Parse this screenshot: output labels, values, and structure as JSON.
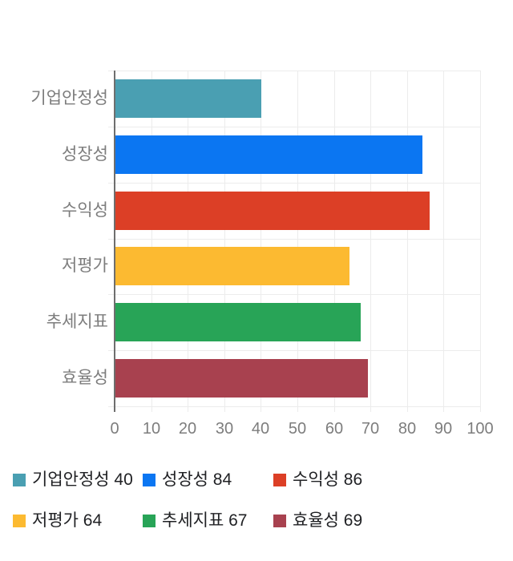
{
  "chart_data": {
    "type": "bar",
    "orientation": "horizontal",
    "title": "",
    "xlabel": "",
    "ylabel": "",
    "categories": [
      "기업안정성",
      "성장성",
      "수익성",
      "저평가",
      "추세지표",
      "효율성"
    ],
    "values": [
      40,
      84,
      86,
      64,
      67,
      69
    ],
    "bar_colors": [
      "#4a9fb2",
      "#0b76f2",
      "#dc3f26",
      "#fcba31",
      "#28a457",
      "#a8414f"
    ],
    "xlim": [
      0,
      100
    ],
    "x_ticks": [
      0,
      10,
      20,
      30,
      40,
      50,
      60,
      70,
      80,
      90,
      100
    ],
    "grid": true,
    "legend_position": "bottom",
    "legend": [
      {
        "label": "기업안정성",
        "value": 40,
        "color": "#4a9fb2"
      },
      {
        "label": "성장성",
        "value": 84,
        "color": "#0b76f2"
      },
      {
        "label": "수익성",
        "value": 86,
        "color": "#dc3f26"
      },
      {
        "label": "저평가",
        "value": 64,
        "color": "#fcba31"
      },
      {
        "label": "추세지표",
        "value": 67,
        "color": "#28a457"
      },
      {
        "label": "효율성",
        "value": 69,
        "color": "#a8414f"
      }
    ]
  },
  "styles": {
    "background_color": "#ffffff",
    "grid_color": "#ececec",
    "axis_line_color": "#6e6e6e",
    "category_label_color": "#7d7d7d",
    "tick_label_color": "#7d7d7d",
    "legend_text_color": "#202124"
  }
}
